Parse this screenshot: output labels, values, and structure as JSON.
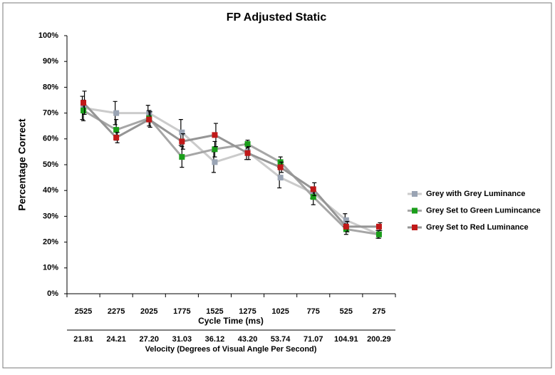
{
  "chart_data": {
    "type": "line",
    "title": "FP Adjusted Static",
    "y_label": "Percentage Correct",
    "x_label": "Cycle Time (ms)",
    "x2_label": "Velocity (Degrees of Visual Angle Per Second)",
    "categories": [
      "2525",
      "2275",
      "2025",
      "1775",
      "1525",
      "1275",
      "1025",
      "775",
      "525",
      "275"
    ],
    "velocities": [
      "21.81",
      "24.21",
      "27.20",
      "31.03",
      "36.12",
      "43.20",
      "53.74",
      "71.07",
      "104.91",
      "200.29"
    ],
    "ylim": [
      0,
      100
    ],
    "yticks": [
      {
        "value": 0,
        "label": "0%"
      },
      {
        "value": 10,
        "label": "10%"
      },
      {
        "value": 20,
        "label": "20%"
      },
      {
        "value": 30,
        "label": "30%"
      },
      {
        "value": 40,
        "label": "40%"
      },
      {
        "value": 50,
        "label": "50%"
      },
      {
        "value": 60,
        "label": "60%"
      },
      {
        "value": 70,
        "label": "70%"
      },
      {
        "value": 80,
        "label": "80%"
      },
      {
        "value": 90,
        "label": "90%"
      },
      {
        "value": 100,
        "label": "100%"
      }
    ],
    "legend": "right",
    "series": [
      {
        "name": "Grey with Grey Luminance",
        "color": "#9aa4b4",
        "line_color": "#cbcbcb",
        "values": [
          72,
          70,
          70,
          62.5,
          51,
          55,
          45,
          39,
          28.5,
          23
        ],
        "errors": [
          4.5,
          4.5,
          3,
          5,
          4,
          3,
          4,
          2,
          2.5,
          1.5
        ]
      },
      {
        "name": "Grey Set to Green Lumincance",
        "color": "#1a9e1a",
        "line_color": "#a6a6a6",
        "values": [
          71,
          63.5,
          68,
          53,
          56,
          58,
          51,
          37.5,
          25,
          23
        ],
        "errors": [
          4,
          4,
          3,
          4,
          3,
          1.5,
          2,
          3,
          2,
          1.5
        ]
      },
      {
        "name": "Grey Set to Red Luminance",
        "color": "#c01818",
        "line_color": "#959595",
        "values": [
          74,
          60.5,
          67.5,
          59,
          61.5,
          54.5,
          49,
          40.5,
          26,
          26
        ],
        "errors": [
          4.5,
          2,
          3,
          3,
          4.5,
          2.5,
          2,
          2.5,
          2,
          1.5
        ]
      }
    ]
  }
}
